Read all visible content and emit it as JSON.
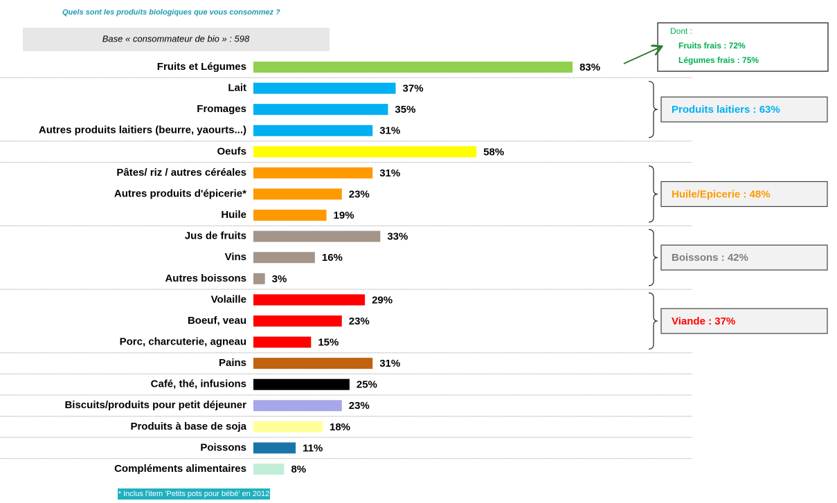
{
  "chart_data": {
    "type": "bar",
    "orientation": "horizontal",
    "title": "Quels sont les produits biologiques que vous consommez ?",
    "subtitle": "Base « consommateur de bio » :  598",
    "footnote": "* Inclus l'item 'Petits pots pour bébé' en 2012",
    "categories": [
      "Fruits et Légumes",
      "Lait",
      "Fromages",
      "Autres produits laitiers (beurre, yaourts...)",
      "Oeufs",
      "Pâtes/ riz / autres céréales",
      "Autres produits d'épicerie*",
      "Huile",
      "Jus de fruits",
      "Vins",
      "Autres boissons",
      "Volaille",
      "Boeuf, veau",
      "Porc, charcuterie, agneau",
      "Pains",
      "Café, thé, infusions",
      "Biscuits/produits pour petit déjeuner",
      "Produits à base de soja",
      "Poissons",
      "Compléments alimentaires"
    ],
    "values": [
      83,
      37,
      35,
      31,
      58,
      31,
      23,
      19,
      33,
      16,
      3,
      29,
      23,
      15,
      31,
      25,
      23,
      18,
      11,
      8
    ],
    "value_labels": [
      "83%",
      "37%",
      "35%",
      "31%",
      "58%",
      "31%",
      "23%",
      "19%",
      "33%",
      "16%",
      "3%",
      "29%",
      "23%",
      "15%",
      "31%",
      "25%",
      "23%",
      "18%",
      "11%",
      "8%"
    ],
    "colors": [
      "#92d050",
      "#00b0f0",
      "#00b0f0",
      "#00b0f0",
      "#ffff00",
      "#ff9900",
      "#ff9900",
      "#ff9900",
      "#a39589",
      "#a39589",
      "#a39589",
      "#ff0000",
      "#ff0000",
      "#ff0000",
      "#c0620f",
      "#000000",
      "#a6a6e8",
      "#ffff99",
      "#1a74a8",
      "#c2eed8"
    ],
    "detail_box": {
      "heading": "Dont :",
      "lines": [
        "Fruits frais : 72%",
        "Légumes frais : 75%"
      ],
      "color": "#00b050"
    },
    "groups": [
      {
        "label": "Produits laitiers : 63%",
        "color": "#00b0f0"
      },
      {
        "label": "Huile/Epicerie : 48%",
        "color": "#ff9900"
      },
      {
        "label": "Boissons : 42%",
        "color": "#7f7f7f"
      },
      {
        "label": "Viande : 37%",
        "color": "#ff0000"
      }
    ]
  }
}
